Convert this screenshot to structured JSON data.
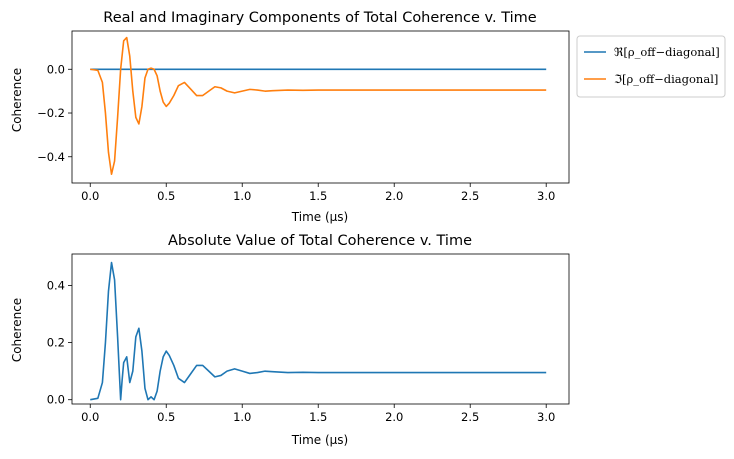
{
  "figure": {
    "background": "#ffffff"
  },
  "chart_data": [
    {
      "type": "line",
      "title": "Real and Imaginary Components of Total Coherence v. Time",
      "xlabel": "Time (μs)",
      "ylabel": "Coherence",
      "xlim": [
        -0.12,
        3.15
      ],
      "ylim": [
        -0.52,
        0.175
      ],
      "xticks": [
        0.0,
        0.5,
        1.0,
        1.5,
        2.0,
        2.5,
        3.0
      ],
      "xticklabels": [
        "0.0",
        "0.5",
        "1.0",
        "1.5",
        "2.0",
        "2.5",
        "3.0"
      ],
      "yticks": [
        0.0,
        -0.2,
        -0.4
      ],
      "yticklabels": [
        "0.0",
        "−0.2",
        "−0.4"
      ],
      "grid": false,
      "legend_position": "outside-right-top",
      "series": [
        {
          "name": "ℜ[ρ_off−diagonal]",
          "color": "#1f77b4",
          "x": [
            0.0,
            3.0
          ],
          "y": [
            0.0,
            0.0
          ]
        },
        {
          "name": "ℑ[ρ_off−diagonal]",
          "color": "#ff7f0e",
          "x": [
            0.0,
            0.05,
            0.08,
            0.1,
            0.12,
            0.14,
            0.16,
            0.18,
            0.2,
            0.22,
            0.24,
            0.26,
            0.28,
            0.3,
            0.32,
            0.34,
            0.36,
            0.38,
            0.4,
            0.42,
            0.44,
            0.46,
            0.48,
            0.5,
            0.52,
            0.55,
            0.58,
            0.62,
            0.66,
            0.7,
            0.74,
            0.78,
            0.82,
            0.86,
            0.9,
            0.95,
            1.0,
            1.05,
            1.1,
            1.15,
            1.2,
            1.3,
            1.4,
            1.5,
            2.0,
            2.5,
            3.0
          ],
          "y": [
            0.0,
            -0.005,
            -0.06,
            -0.2,
            -0.38,
            -0.48,
            -0.42,
            -0.22,
            0.0,
            0.13,
            0.145,
            0.06,
            -0.1,
            -0.22,
            -0.25,
            -0.17,
            -0.04,
            0.0,
            0.005,
            0.0,
            -0.03,
            -0.1,
            -0.15,
            -0.17,
            -0.155,
            -0.12,
            -0.075,
            -0.06,
            -0.09,
            -0.12,
            -0.12,
            -0.1,
            -0.08,
            -0.085,
            -0.1,
            -0.108,
            -0.1,
            -0.092,
            -0.095,
            -0.1,
            -0.098,
            -0.095,
            -0.096,
            -0.095,
            -0.095,
            -0.095,
            -0.095
          ]
        }
      ]
    },
    {
      "type": "line",
      "title": "Absolute Value of Total Coherence v. Time",
      "xlabel": "Time (μs)",
      "ylabel": "Coherence",
      "xlim": [
        -0.12,
        3.15
      ],
      "ylim": [
        -0.015,
        0.51
      ],
      "xticks": [
        0.0,
        0.5,
        1.0,
        1.5,
        2.0,
        2.5,
        3.0
      ],
      "xticklabels": [
        "0.0",
        "0.5",
        "1.0",
        "1.5",
        "2.0",
        "2.5",
        "3.0"
      ],
      "yticks": [
        0.0,
        0.2,
        0.4
      ],
      "yticklabels": [
        "0.0",
        "0.2",
        "0.4"
      ],
      "grid": false,
      "series": [
        {
          "color": "#1f77b4",
          "x": [
            0.0,
            0.05,
            0.08,
            0.1,
            0.12,
            0.14,
            0.16,
            0.18,
            0.2,
            0.21,
            0.22,
            0.24,
            0.26,
            0.28,
            0.3,
            0.32,
            0.34,
            0.36,
            0.38,
            0.4,
            0.42,
            0.44,
            0.46,
            0.48,
            0.5,
            0.52,
            0.55,
            0.58,
            0.62,
            0.66,
            0.7,
            0.74,
            0.78,
            0.82,
            0.86,
            0.9,
            0.95,
            1.0,
            1.05,
            1.1,
            1.15,
            1.2,
            1.3,
            1.4,
            1.5,
            2.0,
            2.5,
            3.0
          ],
          "y": [
            0.0,
            0.005,
            0.06,
            0.2,
            0.38,
            0.48,
            0.42,
            0.22,
            0.0,
            0.07,
            0.13,
            0.15,
            0.06,
            0.1,
            0.22,
            0.25,
            0.17,
            0.04,
            0.0,
            0.01,
            0.0,
            0.03,
            0.1,
            0.15,
            0.17,
            0.155,
            0.12,
            0.075,
            0.06,
            0.09,
            0.12,
            0.12,
            0.1,
            0.08,
            0.085,
            0.1,
            0.108,
            0.1,
            0.092,
            0.095,
            0.1,
            0.098,
            0.095,
            0.096,
            0.095,
            0.095,
            0.095,
            0.095
          ]
        }
      ]
    }
  ]
}
